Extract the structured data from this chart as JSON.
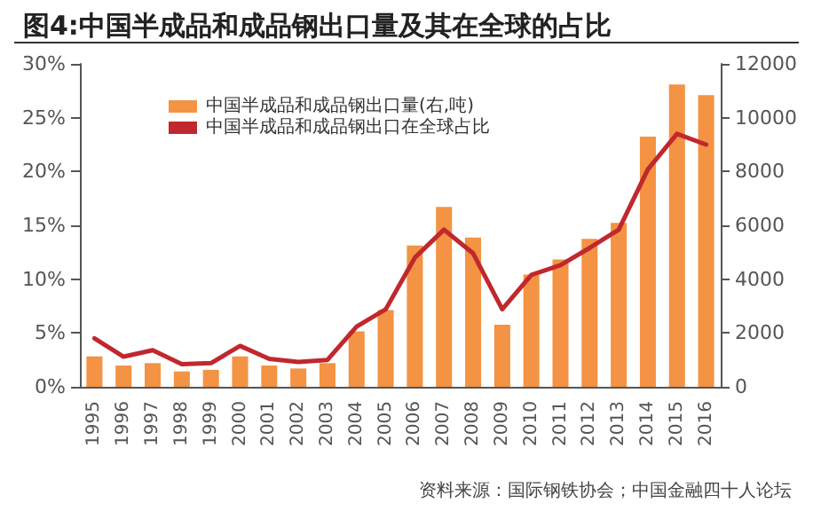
{
  "chart_data": {
    "type": "bar",
    "title": "图4:中国半成品和成品钢出口量及其在全球的占比",
    "categories": [
      "1995",
      "1996",
      "1997",
      "1998",
      "1999",
      "2000",
      "2001",
      "2002",
      "2003",
      "2004",
      "2005",
      "2006",
      "2007",
      "2008",
      "2009",
      "2010",
      "2011",
      "2012",
      "2013",
      "2014",
      "2015",
      "2016"
    ],
    "series": [
      {
        "name": "中国半成品和成品钢出口量(右,吨)",
        "axis": "y2",
        "color": "#f39343",
        "values": [
          1130,
          790,
          880,
          570,
          630,
          1130,
          790,
          680,
          880,
          2060,
          2850,
          5250,
          6680,
          5550,
          2310,
          4170,
          4730,
          5500,
          6090,
          9300,
          11230,
          10840
        ]
      },
      {
        "name": "中国半成品和成品钢出口在全球占比",
        "type": "line",
        "color": "#c0282d",
        "values": [
          4.5,
          2.8,
          3.4,
          2.1,
          2.2,
          3.8,
          2.6,
          2.3,
          2.5,
          5.6,
          7.2,
          12.0,
          14.6,
          12.4,
          7.2,
          10.4,
          11.3,
          12.9,
          14.6,
          20.2,
          23.5,
          22.5
        ]
      }
    ],
    "ylim": [
      0,
      30
    ],
    "yticks": [
      {
        "value": 0,
        "label": "0%"
      },
      {
        "value": 5,
        "label": "5%"
      },
      {
        "value": 10,
        "label": "10%"
      },
      {
        "value": 15,
        "label": "15%"
      },
      {
        "value": 20,
        "label": "20%"
      },
      {
        "value": 25,
        "label": "25%"
      },
      {
        "value": 30,
        "label": "30%"
      }
    ],
    "y2lim": [
      0,
      12000
    ],
    "y2ticks": [
      0,
      2000,
      4000,
      6000,
      8000,
      10000,
      12000
    ],
    "grid": false,
    "legend": "top left",
    "marker": "none",
    "line_style": "solid",
    "annotations": [
      "资料来源：国际钢铁协会；中国金融四十人论坛"
    ]
  }
}
